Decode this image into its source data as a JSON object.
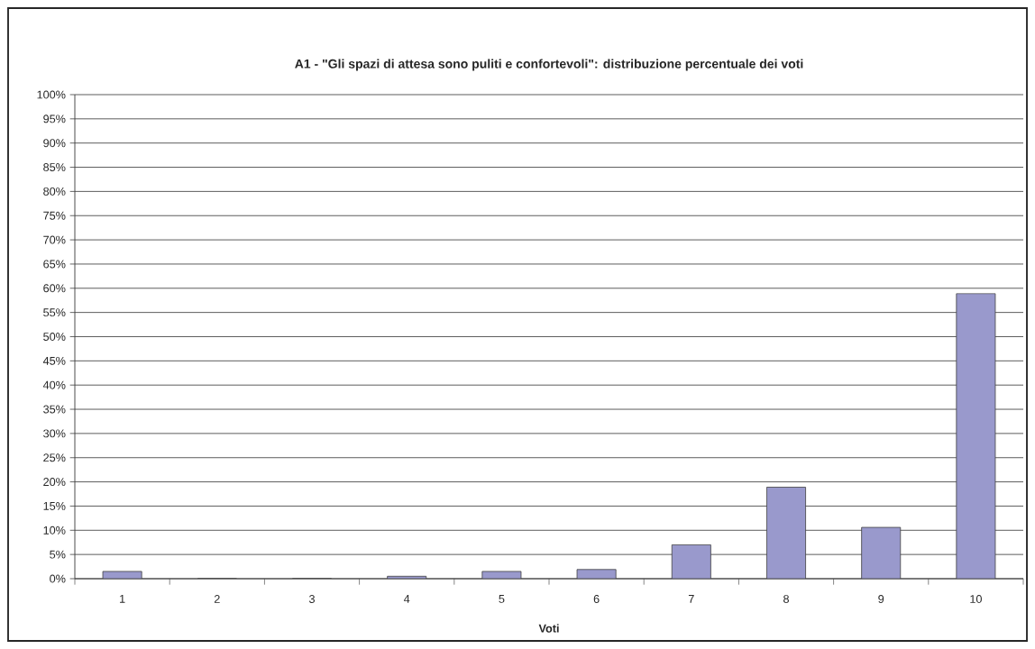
{
  "chart_data": {
    "type": "bar",
    "title": "A1 - \"Gli spazi di attesa sono puliti e confortevoli\": distribuzione percentuale dei voti",
    "xlabel": "Voti",
    "categories": [
      "1",
      "2",
      "3",
      "4",
      "5",
      "6",
      "7",
      "8",
      "9",
      "10"
    ],
    "values": [
      1.5,
      0,
      0,
      0.5,
      1.5,
      1.9,
      7.0,
      18.9,
      10.6,
      58.9
    ],
    "color": "#9999cc",
    "ylim": [
      0,
      100
    ],
    "yticks": [
      {
        "value": 0,
        "label": "0%"
      },
      {
        "value": 5,
        "label": "5%"
      },
      {
        "value": 10,
        "label": "10%"
      },
      {
        "value": 15,
        "label": "15%"
      },
      {
        "value": 20,
        "label": "20%"
      },
      {
        "value": 25,
        "label": "25%"
      },
      {
        "value": 30,
        "label": "30%"
      },
      {
        "value": 35,
        "label": "35%"
      },
      {
        "value": 40,
        "label": "40%"
      },
      {
        "value": 45,
        "label": "45%"
      },
      {
        "value": 50,
        "label": "50%"
      },
      {
        "value": 55,
        "label": "55%"
      },
      {
        "value": 60,
        "label": "60%"
      },
      {
        "value": 65,
        "label": "65%"
      },
      {
        "value": 70,
        "label": "70%"
      },
      {
        "value": 75,
        "label": "75%"
      },
      {
        "value": 80,
        "label": "80%"
      },
      {
        "value": 85,
        "label": "85%"
      },
      {
        "value": 90,
        "label": "90%"
      },
      {
        "value": 95,
        "label": "95%"
      },
      {
        "value": 100,
        "label": "100%"
      }
    ],
    "grid": "y"
  }
}
